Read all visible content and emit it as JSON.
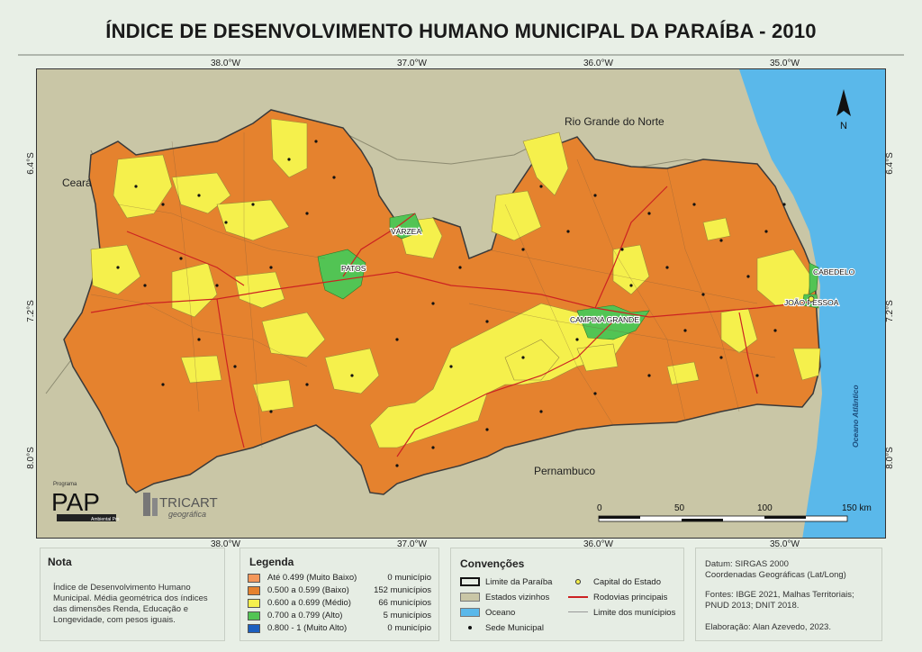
{
  "title": "ÍNDICE DE DESENVOLVIMENTO HUMANO MUNICIPAL DA PARAÍBA - 2010",
  "coords": {
    "top": [
      "38.0°W",
      "37.0°W",
      "36.0°W",
      "35.0°W"
    ],
    "bottom": [
      "38.0°W",
      "37.0°W",
      "36.0°W",
      "35.0°W"
    ],
    "left": [
      "6.4°S",
      "7.2°S",
      "8.0°S"
    ],
    "right": [
      "6.4°S",
      "7.2°S",
      "8.0°S"
    ]
  },
  "map": {
    "neighbors": {
      "rn": "Rio Grande do Norte",
      "ce": "Ceará",
      "pe": "Pernambuco",
      "ocean": "Oceano Atlântico"
    },
    "cities": {
      "varzea": "VÁRZEA",
      "patos": "PATOS",
      "campina": "CAMPINA GRANDE",
      "cabedelo": "CABEDELO",
      "joao_pessoa": "JOÃO PESSOA"
    },
    "north": "N",
    "scale": {
      "labels": [
        "0",
        "50",
        "100",
        "150 km"
      ]
    }
  },
  "logos": {
    "pap_small": "Programa",
    "pap": "PAP",
    "pap_sub": "Ambiental Pro",
    "tricart": "TRICART",
    "tricart_sub": "geográfica"
  },
  "note": {
    "title": "Nota",
    "text": "Índice de Desenvolvimento Humano Municipal. Média geométrica dos índices das dimensões Renda, Educação e Longevidade, com pesos iguais."
  },
  "legend": {
    "title": "Legenda",
    "items": [
      {
        "label": "Até 0.499 (Muito Baixo)",
        "count": "0 município",
        "color": "#f4975a"
      },
      {
        "label": "0.500 a 0.599 (Baixo)",
        "count": "152 municípios",
        "color": "#e5822e"
      },
      {
        "label": "0.600 a 0.699 (Médio)",
        "count": "66 municípios",
        "color": "#f5f04c"
      },
      {
        "label": "0.700 a 0.799 (Alto)",
        "count": "5 municípios",
        "color": "#52c454"
      },
      {
        "label": "0.800 - 1 (Muito Alto)",
        "count": "0 município",
        "color": "#1c5fbf"
      }
    ]
  },
  "conventions": {
    "title": "Convenções",
    "items": {
      "limit": "Limite da Paraíba",
      "states": "Estados vizinhos",
      "ocean": "Oceano",
      "seat": "Sede Municipal",
      "capital": "Capital do Estado",
      "roads": "Rodovias principais",
      "muni": "Limite dos munícipios"
    }
  },
  "info": {
    "datum": "Datum: SIRGAS 2000",
    "coords": "Coordenadas Geográficas (Lat/Long)",
    "sources": "Fontes: IBGE 2021, Malhas Territoriais; PNUD 2013; DNIT 2018.",
    "author": "Elaboração: Alan Azevedo, 2023."
  },
  "colors": {
    "baixo": "#e5822e",
    "medio": "#f5f04c",
    "alto": "#52c454",
    "ocean": "#5ab8ea",
    "neighbors": "#c9c6a6",
    "road": "#cc2222"
  }
}
